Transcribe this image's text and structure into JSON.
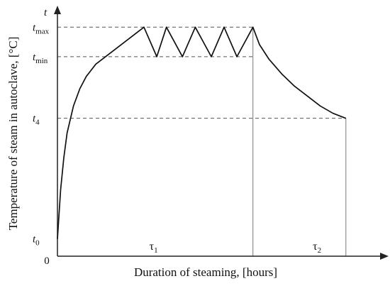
{
  "chart_data": {
    "type": "line",
    "title": "",
    "xlabel": "Duration of steaming, [hours]",
    "ylabel": "Temperature of steam in autoclave, [°C]",
    "xlim": [
      0,
      1
    ],
    "ylim": [
      0,
      1
    ],
    "y_axis_symbol": "t",
    "origin_label": "0",
    "y_ticks": [
      {
        "main": "t",
        "sub": "max",
        "value": 0.93
      },
      {
        "main": "t",
        "sub": "min",
        "value": 0.81
      },
      {
        "main": "t",
        "sub": "4",
        "value": 0.56
      },
      {
        "main": "t",
        "sub": "0",
        "value": 0.07
      }
    ],
    "phase_labels": [
      {
        "main": "τ",
        "sub": "1",
        "x": 0.3
      },
      {
        "main": "τ",
        "sub": "2",
        "x": 0.81
      }
    ],
    "phase_boundaries": [
      0.61,
      0.9
    ],
    "grid": false,
    "reference_lines": "dashed",
    "series": [
      {
        "values": {
          "x": [
            0,
            0.01,
            0.02,
            0.03,
            0.05,
            0.07,
            0.09,
            0.12,
            0.15,
            0.2,
            0.27,
            0.31,
            0.34,
            0.39,
            0.43,
            0.48,
            0.52,
            0.56,
            0.61,
            0.63,
            0.66,
            0.7,
            0.74,
            0.78,
            0.82,
            0.86,
            0.9
          ],
          "y": [
            0.07,
            0.27,
            0.4,
            0.5,
            0.61,
            0.68,
            0.73,
            0.78,
            0.81,
            0.86,
            0.93,
            0.81,
            0.93,
            0.81,
            0.93,
            0.81,
            0.93,
            0.81,
            0.93,
            0.86,
            0.8,
            0.74,
            0.69,
            0.65,
            0.61,
            0.58,
            0.56
          ]
        }
      }
    ]
  }
}
